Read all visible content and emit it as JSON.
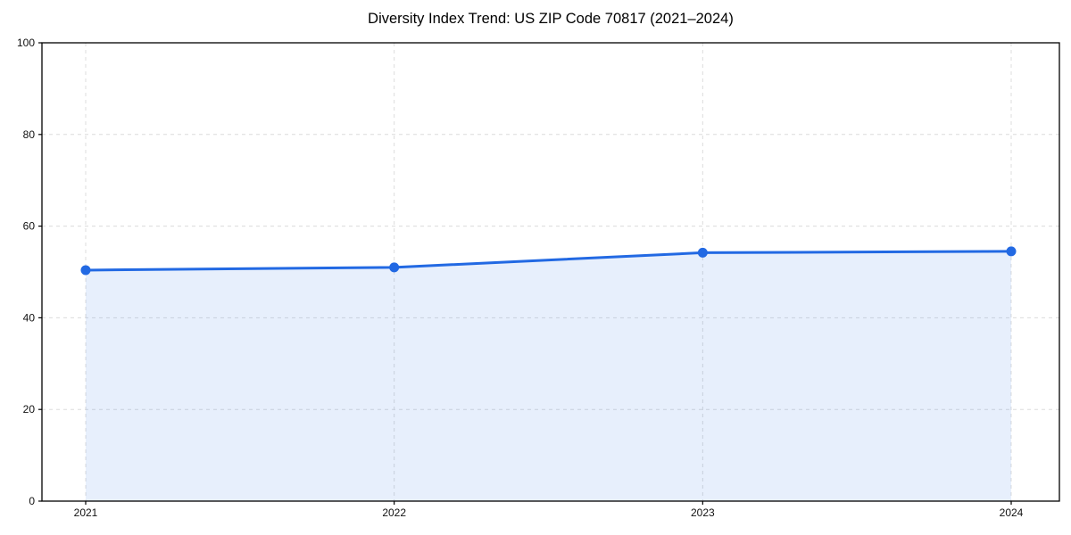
{
  "chart_data": {
    "type": "area",
    "title": "Diversity Index Trend: US ZIP Code 70817 (2021–2024)",
    "categories": [
      "2021",
      "2022",
      "2023",
      "2024"
    ],
    "values": [
      50.4,
      51.0,
      54.2,
      54.5
    ],
    "xlabel": "",
    "ylabel": "",
    "ylim": [
      0,
      100
    ],
    "yticks": [
      0,
      20,
      40,
      60,
      80,
      100
    ],
    "grid": "dashed-both-axes",
    "legend_position": "none",
    "colors": {
      "line": "#2269e3",
      "marker": "#2269e3",
      "fill": "#2269e3",
      "fill_opacity": "0.11",
      "grid": "#dcdcdc",
      "axis": "#000000",
      "background": "#ffffff",
      "tick_text": "#111111"
    }
  }
}
